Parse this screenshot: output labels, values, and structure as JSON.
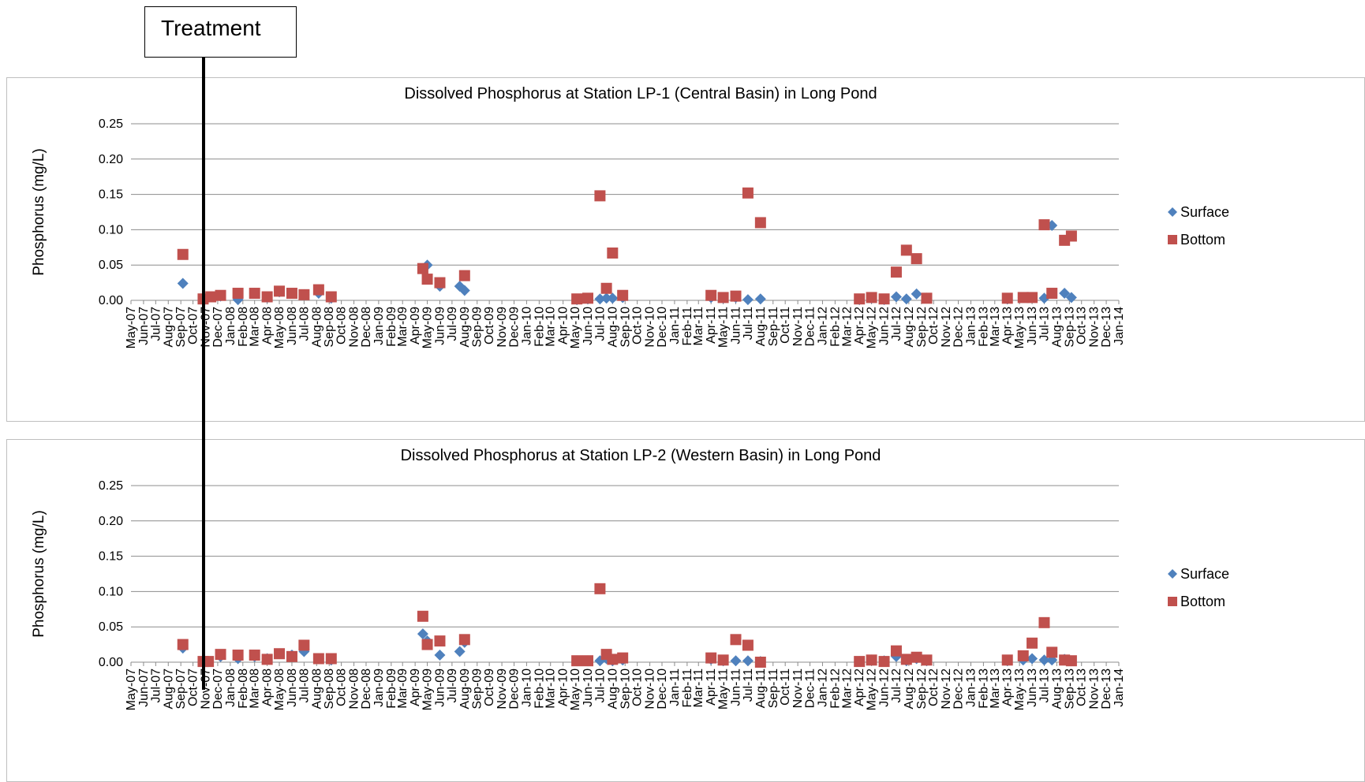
{
  "annotation": {
    "label": "Treatment",
    "date": "2007-10-01"
  },
  "chart_data": [
    {
      "type": "scatter",
      "title": "Dissolved Phosphorus at Station LP-1 (Central Basin) in Long Pond",
      "ylabel": "Phosphorus (mg/L)",
      "xlabel": "",
      "ylim": [
        0,
        0.25
      ],
      "yticks": [
        "0.00",
        "0.05",
        "0.10",
        "0.15",
        "0.20",
        "0.25"
      ],
      "x_range": [
        "2007-05-01",
        "2014-01-01"
      ],
      "xticks": [
        "May-07",
        "Jun-07",
        "Jul-07",
        "Aug-07",
        "Sep-07",
        "Oct-07",
        "Nov-07",
        "Dec-07",
        "Jan-08",
        "Feb-08",
        "Mar-08",
        "Apr-08",
        "May-08",
        "Jun-08",
        "Jul-08",
        "Aug-08",
        "Sep-08",
        "Oct-08",
        "Nov-08",
        "Dec-08",
        "Jan-09",
        "Feb-09",
        "Mar-09",
        "Apr-09",
        "May-09",
        "Jun-09",
        "Jul-09",
        "Aug-09",
        "Sep-09",
        "Oct-09",
        "Nov-09",
        "Dec-09",
        "Jan-10",
        "Feb-10",
        "Mar-10",
        "Apr-10",
        "May-10",
        "Jun-10",
        "Jul-10",
        "Aug-10",
        "Sep-10",
        "Oct-10",
        "Nov-10",
        "Dec-10",
        "Jan-11",
        "Feb-11",
        "Mar-11",
        "Apr-11",
        "May-11",
        "Jun-11",
        "Jul-11",
        "Aug-11",
        "Sep-11",
        "Oct-11",
        "Nov-11",
        "Dec-11",
        "Jan-12",
        "Feb-12",
        "Mar-12",
        "Apr-12",
        "May-12",
        "Jun-12",
        "Jul-12",
        "Aug-12",
        "Sep-12",
        "Oct-12",
        "Nov-12",
        "Dec-12",
        "Jan-13",
        "Feb-13",
        "Mar-13",
        "Apr-13",
        "May-13",
        "Jun-13",
        "Jul-13",
        "Aug-13",
        "Sep-13",
        "Oct-13",
        "Nov-13",
        "Dec-13",
        "Jan-14"
      ],
      "grid": true,
      "legend": "right",
      "series": [
        {
          "name": "Surface",
          "marker": "diamond",
          "color": "#4f81bd",
          "points": [
            [
              "2007-09-06",
              0.024
            ],
            [
              "2007-10-26",
              0.002
            ],
            [
              "2007-11-14",
              0.005
            ],
            [
              "2007-12-08",
              0.006
            ],
            [
              "2008-01-20",
              0.001
            ],
            [
              "2008-03-01",
              0.01
            ],
            [
              "2008-04-01",
              0.004
            ],
            [
              "2008-05-01",
              0.012
            ],
            [
              "2008-06-01",
              0.01
            ],
            [
              "2008-07-01",
              0.008
            ],
            [
              "2008-08-06",
              0.01
            ],
            [
              "2008-09-06",
              0.003
            ],
            [
              "2009-04-20",
              0.045
            ],
            [
              "2009-05-01",
              0.05
            ],
            [
              "2009-06-01",
              0.02
            ],
            [
              "2009-07-20",
              0.02
            ],
            [
              "2009-08-01",
              0.014
            ],
            [
              "2010-05-05",
              0.001
            ],
            [
              "2010-06-01",
              0.002
            ],
            [
              "2010-07-01",
              0.002
            ],
            [
              "2010-07-17",
              0.003
            ],
            [
              "2010-08-01",
              0.003
            ],
            [
              "2010-08-26",
              0.004
            ],
            [
              "2011-04-01",
              0.004
            ],
            [
              "2011-05-01",
              0.003
            ],
            [
              "2011-06-01",
              0.004
            ],
            [
              "2011-07-01",
              0.001
            ],
            [
              "2011-08-01",
              0.002
            ],
            [
              "2012-04-01",
              0.001
            ],
            [
              "2012-05-01",
              0.003
            ],
            [
              "2012-06-01",
              0.001
            ],
            [
              "2012-07-01",
              0.005
            ],
            [
              "2012-07-26",
              0.002
            ],
            [
              "2012-08-20",
              0.009
            ],
            [
              "2012-09-14",
              0.003
            ],
            [
              "2013-04-01",
              0.002
            ],
            [
              "2013-05-10",
              0.004
            ],
            [
              "2013-06-01",
              0.004
            ],
            [
              "2013-07-01",
              0.003
            ],
            [
              "2013-07-20",
              0.106
            ],
            [
              "2013-08-20",
              0.01
            ],
            [
              "2013-09-06",
              0.004
            ]
          ]
        },
        {
          "name": "Bottom",
          "marker": "square",
          "color": "#c0504d",
          "points": [
            [
              "2007-09-06",
              0.065
            ],
            [
              "2007-10-26",
              0.002
            ],
            [
              "2007-11-14",
              0.005
            ],
            [
              "2007-12-08",
              0.007
            ],
            [
              "2008-01-20",
              0.01
            ],
            [
              "2008-03-01",
              0.01
            ],
            [
              "2008-04-01",
              0.005
            ],
            [
              "2008-05-01",
              0.013
            ],
            [
              "2008-06-01",
              0.01
            ],
            [
              "2008-07-01",
              0.008
            ],
            [
              "2008-08-06",
              0.015
            ],
            [
              "2008-09-06",
              0.005
            ],
            [
              "2009-04-20",
              0.045
            ],
            [
              "2009-05-01",
              0.03
            ],
            [
              "2009-06-01",
              0.025
            ],
            [
              "2009-08-01",
              0.035
            ],
            [
              "2010-05-05",
              0.002
            ],
            [
              "2010-06-01",
              0.003
            ],
            [
              "2010-07-01",
              0.148
            ],
            [
              "2010-07-17",
              0.017
            ],
            [
              "2010-08-01",
              0.067
            ],
            [
              "2010-08-26",
              0.007
            ],
            [
              "2011-04-01",
              0.007
            ],
            [
              "2011-05-01",
              0.004
            ],
            [
              "2011-06-01",
              0.006
            ],
            [
              "2011-07-01",
              0.152
            ],
            [
              "2011-08-01",
              0.11
            ],
            [
              "2012-04-01",
              0.002
            ],
            [
              "2012-05-01",
              0.004
            ],
            [
              "2012-06-01",
              0.002
            ],
            [
              "2012-07-01",
              0.04
            ],
            [
              "2012-07-26",
              0.071
            ],
            [
              "2012-08-20",
              0.059
            ],
            [
              "2012-09-14",
              0.003
            ],
            [
              "2013-04-01",
              0.003
            ],
            [
              "2013-05-10",
              0.004
            ],
            [
              "2013-06-01",
              0.004
            ],
            [
              "2013-07-01",
              0.107
            ],
            [
              "2013-07-20",
              0.01
            ],
            [
              "2013-08-20",
              0.085
            ],
            [
              "2013-09-06",
              0.091
            ]
          ]
        }
      ]
    },
    {
      "type": "scatter",
      "title": "Dissolved Phosphorus at Station LP-2 (Western Basin) in Long Pond",
      "ylabel": "Phosphorus (mg/L)",
      "xlabel": "",
      "ylim": [
        0,
        0.25
      ],
      "yticks": [
        "0.00",
        "0.05",
        "0.10",
        "0.15",
        "0.20",
        "0.25"
      ],
      "x_range": [
        "2007-05-01",
        "2014-01-01"
      ],
      "xticks": [
        "May-07",
        "Jun-07",
        "Jul-07",
        "Aug-07",
        "Sep-07",
        "Oct-07",
        "Nov-07",
        "Dec-07",
        "Jan-08",
        "Feb-08",
        "Mar-08",
        "Apr-08",
        "May-08",
        "Jun-08",
        "Jul-08",
        "Aug-08",
        "Sep-08",
        "Oct-08",
        "Nov-08",
        "Dec-08",
        "Jan-09",
        "Feb-09",
        "Mar-09",
        "Apr-09",
        "May-09",
        "Jun-09",
        "Jul-09",
        "Aug-09",
        "Sep-09",
        "Oct-09",
        "Nov-09",
        "Dec-09",
        "Jan-10",
        "Feb-10",
        "Mar-10",
        "Apr-10",
        "May-10",
        "Jun-10",
        "Jul-10",
        "Aug-10",
        "Sep-10",
        "Oct-10",
        "Nov-10",
        "Dec-10",
        "Jan-11",
        "Feb-11",
        "Mar-11",
        "Apr-11",
        "May-11",
        "Jun-11",
        "Jul-11",
        "Aug-11",
        "Sep-11",
        "Oct-11",
        "Nov-11",
        "Dec-11",
        "Jan-12",
        "Feb-12",
        "Mar-12",
        "Apr-12",
        "May-12",
        "Jun-12",
        "Jul-12",
        "Aug-12",
        "Sep-12",
        "Oct-12",
        "Nov-12",
        "Dec-12",
        "Jan-13",
        "Feb-13",
        "Mar-13",
        "Apr-13",
        "May-13",
        "Jun-13",
        "Jul-13",
        "Aug-13",
        "Sep-13",
        "Oct-13",
        "Nov-13",
        "Dec-13",
        "Jan-14"
      ],
      "grid": true,
      "legend": "right",
      "series": [
        {
          "name": "Surface",
          "marker": "diamond",
          "color": "#4f81bd",
          "points": [
            [
              "2007-09-06",
              0.02
            ],
            [
              "2007-10-26",
              0.001
            ],
            [
              "2007-11-08",
              0.001
            ],
            [
              "2007-12-08",
              0.008
            ],
            [
              "2008-01-20",
              0.005
            ],
            [
              "2008-03-01",
              0.008
            ],
            [
              "2008-04-01",
              0.005
            ],
            [
              "2008-05-01",
              0.012
            ],
            [
              "2008-06-01",
              0.01
            ],
            [
              "2008-07-01",
              0.015
            ],
            [
              "2008-08-06",
              0.005
            ],
            [
              "2008-09-06",
              0.003
            ],
            [
              "2009-04-20",
              0.04
            ],
            [
              "2009-05-01",
              0.03
            ],
            [
              "2009-06-01",
              0.01
            ],
            [
              "2009-07-20",
              0.015
            ],
            [
              "2009-08-01",
              0.028
            ],
            [
              "2010-05-05",
              0.002
            ],
            [
              "2010-06-01",
              0.002
            ],
            [
              "2010-07-01",
              0.002
            ],
            [
              "2010-07-17",
              0.005
            ],
            [
              "2010-08-01",
              0.002
            ],
            [
              "2010-08-26",
              0.003
            ],
            [
              "2011-04-01",
              0.004
            ],
            [
              "2011-05-01",
              0.002
            ],
            [
              "2011-06-01",
              0.002
            ],
            [
              "2011-07-01",
              0.002
            ],
            [
              "2011-08-01",
              0.001
            ],
            [
              "2012-04-01",
              0.001
            ],
            [
              "2012-05-01",
              0.003
            ],
            [
              "2012-06-01",
              0.002
            ],
            [
              "2012-07-01",
              0.008
            ],
            [
              "2012-07-26",
              0.002
            ],
            [
              "2012-08-20",
              0.005
            ],
            [
              "2012-09-14",
              0.002
            ],
            [
              "2013-04-01",
              0.002
            ],
            [
              "2013-05-10",
              0.003
            ],
            [
              "2013-06-01",
              0.005
            ],
            [
              "2013-07-01",
              0.003
            ],
            [
              "2013-07-20",
              0.003
            ],
            [
              "2013-08-20",
              0.004
            ],
            [
              "2013-09-06",
              0.002
            ]
          ]
        },
        {
          "name": "Bottom",
          "marker": "square",
          "color": "#c0504d",
          "points": [
            [
              "2007-09-06",
              0.025
            ],
            [
              "2007-10-26",
              0.001
            ],
            [
              "2007-11-08",
              0.001
            ],
            [
              "2007-12-08",
              0.011
            ],
            [
              "2008-01-20",
              0.01
            ],
            [
              "2008-03-01",
              0.01
            ],
            [
              "2008-04-01",
              0.004
            ],
            [
              "2008-05-01",
              0.012
            ],
            [
              "2008-06-01",
              0.008
            ],
            [
              "2008-07-01",
              0.024
            ],
            [
              "2008-08-06",
              0.005
            ],
            [
              "2008-09-06",
              0.005
            ],
            [
              "2009-04-20",
              0.065
            ],
            [
              "2009-05-01",
              0.025
            ],
            [
              "2009-06-01",
              0.03
            ],
            [
              "2009-08-01",
              0.032
            ],
            [
              "2010-05-05",
              0.002
            ],
            [
              "2010-06-01",
              0.002
            ],
            [
              "2010-07-01",
              0.104
            ],
            [
              "2010-07-17",
              0.011
            ],
            [
              "2010-08-01",
              0.004
            ],
            [
              "2010-08-26",
              0.006
            ],
            [
              "2011-04-01",
              0.006
            ],
            [
              "2011-05-01",
              0.003
            ],
            [
              "2011-06-01",
              0.032
            ],
            [
              "2011-07-01",
              0.024
            ],
            [
              "2011-08-01",
              0.0
            ],
            [
              "2012-04-01",
              0.001
            ],
            [
              "2012-05-01",
              0.003
            ],
            [
              "2012-06-01",
              0.001
            ],
            [
              "2012-07-01",
              0.016
            ],
            [
              "2012-07-26",
              0.004
            ],
            [
              "2012-08-20",
              0.007
            ],
            [
              "2012-09-14",
              0.003
            ],
            [
              "2013-04-01",
              0.003
            ],
            [
              "2013-05-10",
              0.009
            ],
            [
              "2013-06-01",
              0.027
            ],
            [
              "2013-07-01",
              0.056
            ],
            [
              "2013-07-20",
              0.014
            ],
            [
              "2013-08-20",
              0.003
            ],
            [
              "2013-09-06",
              0.002
            ]
          ]
        }
      ]
    }
  ]
}
